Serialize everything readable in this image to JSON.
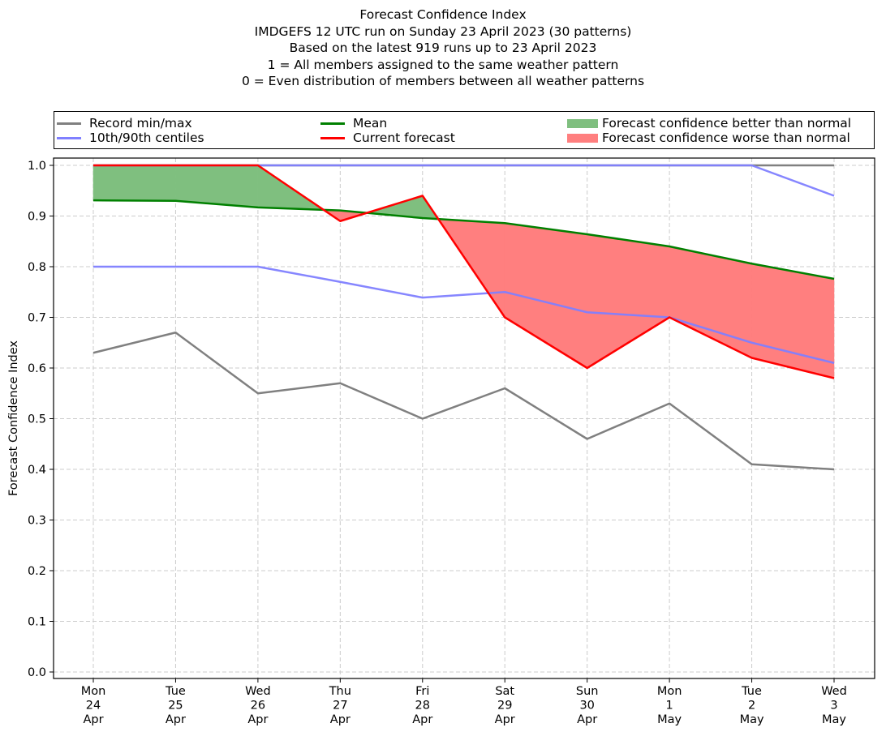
{
  "chart_data": {
    "type": "line",
    "title": "Forecast Confidence Index",
    "subtitle_lines": [
      "IMDGEFS 12 UTC run on Sunday 23 April 2023 (30 patterns)",
      "Based on the latest 919 runs up to 23 April 2023",
      "1 = All members assigned to the same weather pattern",
      "0 = Even distribution of members between all weather patterns"
    ],
    "xlabel": "",
    "ylabel": "Forecast Confidence Index",
    "ylim": [
      0.0,
      1.0
    ],
    "yticks": [
      "0.0",
      "0.1",
      "0.2",
      "0.3",
      "0.4",
      "0.5",
      "0.6",
      "0.7",
      "0.8",
      "0.9",
      "1.0"
    ],
    "grid": true,
    "legend_position": "top (above plot, 3 columns)",
    "categories": [
      [
        "Mon",
        "24",
        "Apr"
      ],
      [
        "Tue",
        "25",
        "Apr"
      ],
      [
        "Wed",
        "26",
        "Apr"
      ],
      [
        "Thu",
        "27",
        "Apr"
      ],
      [
        "Fri",
        "28",
        "Apr"
      ],
      [
        "Sat",
        "29",
        "Apr"
      ],
      [
        "Sun",
        "30",
        "Apr"
      ],
      [
        "Mon",
        "1",
        "May"
      ],
      [
        "Tue",
        "2",
        "May"
      ],
      [
        "Wed",
        "3",
        "May"
      ]
    ],
    "series": [
      {
        "name": "Record min",
        "legend": "Record min/max",
        "color": "#808080",
        "values": [
          0.63,
          0.67,
          0.55,
          0.57,
          0.5,
          0.56,
          0.46,
          0.53,
          0.41,
          0.4
        ]
      },
      {
        "name": "Record max",
        "legend": "Record min/max",
        "color": "#808080",
        "values": [
          1.0,
          1.0,
          1.0,
          1.0,
          1.0,
          1.0,
          1.0,
          1.0,
          1.0,
          1.0
        ]
      },
      {
        "name": "10th centile",
        "legend": "10th/90th centiles",
        "color": "#8080ff",
        "values": [
          0.8,
          0.8,
          0.8,
          0.77,
          0.739,
          0.75,
          0.71,
          0.7,
          0.65,
          0.61
        ]
      },
      {
        "name": "90th centile",
        "legend": "10th/90th centiles",
        "color": "#8080ff",
        "values": [
          1.0,
          1.0,
          1.0,
          1.0,
          1.0,
          1.0,
          1.0,
          1.0,
          1.0,
          0.94
        ]
      },
      {
        "name": "Mean",
        "legend": "Mean",
        "color": "#008000",
        "values": [
          0.931,
          0.93,
          0.917,
          0.911,
          0.896,
          0.886,
          0.864,
          0.84,
          0.806,
          0.776
        ]
      },
      {
        "name": "Current forecast",
        "legend": "Current forecast",
        "color": "#ff0000",
        "values": [
          1.0,
          1.0,
          1.0,
          0.89,
          0.94,
          0.7,
          0.6,
          0.7,
          0.62,
          0.58
        ]
      }
    ],
    "fills": [
      {
        "name": "Forecast confidence better than normal",
        "color": "#7fbf7f",
        "between": [
          "Current forecast",
          "Mean"
        ],
        "where": "current > mean"
      },
      {
        "name": "Forecast confidence worse than normal",
        "color": "#ff7f7f",
        "between": [
          "Current forecast",
          "Mean"
        ],
        "where": "current < mean"
      }
    ]
  },
  "legend": {
    "items": [
      {
        "label": "Record min/max",
        "kind": "line",
        "color": "#808080"
      },
      {
        "label": "10th/90th centiles",
        "kind": "line",
        "color": "#8080ff"
      },
      {
        "label": "Mean",
        "kind": "line",
        "color": "#008000"
      },
      {
        "label": "Current forecast",
        "kind": "line",
        "color": "#ff0000"
      },
      {
        "label": "Forecast confidence better than normal",
        "kind": "patch",
        "color": "#7fbf7f"
      },
      {
        "label": "Forecast confidence worse than normal",
        "kind": "patch",
        "color": "#ff7f7f"
      }
    ]
  }
}
